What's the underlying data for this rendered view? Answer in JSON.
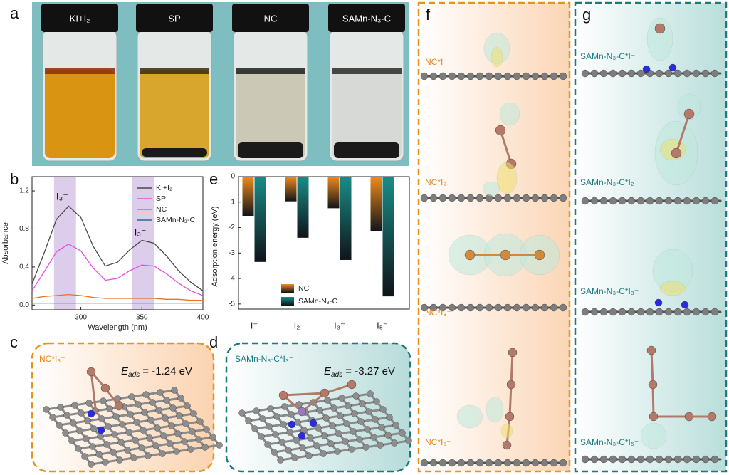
{
  "figure": {
    "panel_letters": [
      "a",
      "b",
      "c",
      "d",
      "e",
      "f",
      "g"
    ],
    "a": {
      "vial_labels": [
        "KI+I₂",
        "SP",
        "NC",
        "SAMn-N₃-C"
      ]
    },
    "c": {
      "label": "NC*I₃⁻",
      "energy_symbol": "E",
      "energy_subscript": "ads",
      "energy_text": " = -1.24 eV"
    },
    "d": {
      "label": "SAMn-N₃-C*I₃⁻",
      "energy_symbol": "E",
      "energy_subscript": "ads",
      "energy_text": " = -3.27 eV"
    },
    "f": {
      "labels": [
        "NC*I⁻",
        "NC*I₂",
        "NC*I₃⁻",
        "NC*I₅⁻"
      ]
    },
    "g": {
      "labels": [
        "SAMn-N₃-C*I⁻",
        "SAMn-N₃-C*I₂",
        "SAMn-N₃-C*I₃⁻",
        "SAMn-N₃-C*I₅⁻"
      ]
    }
  },
  "chart_data": [
    {
      "type": "line",
      "xlabel": "Wavelength (nm)",
      "ylabel": "Absorbance",
      "x": [
        260,
        270,
        280,
        290,
        300,
        310,
        320,
        330,
        340,
        350,
        360,
        370,
        380,
        390,
        400
      ],
      "series": [
        {
          "name": "KI+I₂",
          "color": "#4a4a4a",
          "values": [
            0.22,
            0.55,
            0.9,
            1.04,
            0.92,
            0.62,
            0.41,
            0.45,
            0.58,
            0.68,
            0.65,
            0.52,
            0.36,
            0.24,
            0.15
          ]
        },
        {
          "name": "SP",
          "color": "#e24de6",
          "values": [
            0.15,
            0.35,
            0.56,
            0.64,
            0.57,
            0.39,
            0.26,
            0.28,
            0.36,
            0.42,
            0.41,
            0.33,
            0.23,
            0.15,
            0.1
          ]
        },
        {
          "name": "NC",
          "color": "#e8731e",
          "values": [
            0.07,
            0.09,
            0.1,
            0.11,
            0.1,
            0.08,
            0.07,
            0.07,
            0.07,
            0.07,
            0.07,
            0.06,
            0.06,
            0.05,
            0.05
          ]
        },
        {
          "name": "SAMn-N₃-C",
          "color": "#1f6f86",
          "values": [
            0.02,
            0.02,
            0.02,
            0.02,
            0.02,
            0.02,
            0.02,
            0.02,
            0.02,
            0.02,
            0.02,
            0.02,
            0.02,
            0.02,
            0.02
          ]
        }
      ],
      "xlim": [
        260,
        400
      ],
      "xticks": [
        300,
        350,
        400
      ],
      "ylim": [
        -0.05,
        1.35
      ],
      "yticks": [
        {
          "value": 0,
          "label": "0.0"
        },
        0.4,
        0.8,
        1.2
      ],
      "highlights": [
        {
          "range": [
            278,
            296
          ],
          "label": "I₃⁻"
        },
        {
          "range": [
            342,
            360
          ],
          "label": "I₃⁻"
        }
      ],
      "highlight_color": "#dccdea",
      "legend": "upper right"
    },
    {
      "type": "bar",
      "ylabel": "Adsorption energy (eV)",
      "categories": [
        "I⁻",
        "I₂",
        "I₃⁻",
        "I₅⁻"
      ],
      "series": [
        {
          "name": "NC",
          "color": "#f08a1c",
          "values": [
            -1.55,
            -0.97,
            -1.24,
            -2.15
          ]
        },
        {
          "name": "SAMn-N₃-C",
          "color": "#1a8c88",
          "values": [
            -3.35,
            -2.4,
            -3.27,
            -4.7
          ]
        }
      ],
      "ylim": [
        -5.2,
        0
      ],
      "yticks": [
        0,
        -1,
        -2,
        -3,
        -4,
        -5
      ],
      "legend": "lower center"
    }
  ]
}
